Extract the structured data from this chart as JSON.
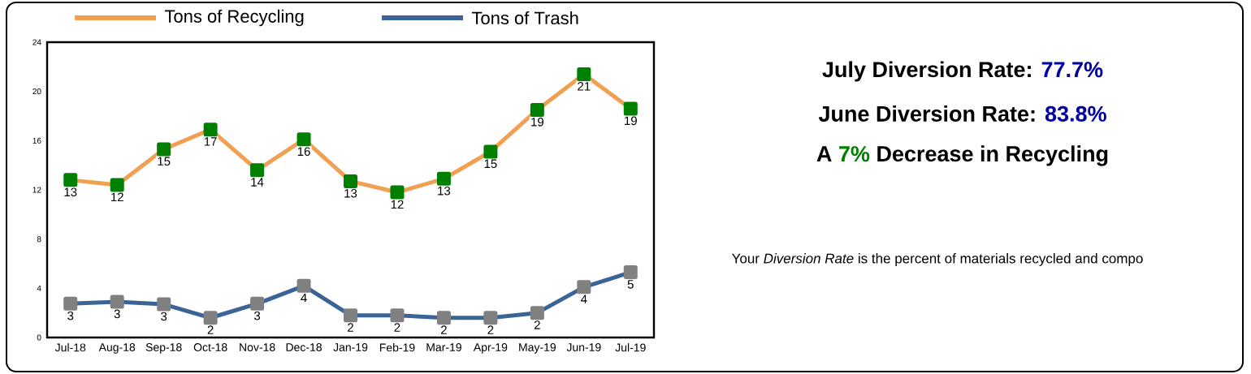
{
  "chart_data": {
    "type": "line",
    "categories": [
      "Jul-18",
      "Aug-18",
      "Sep-18",
      "Oct-18",
      "Nov-18",
      "Dec-18",
      "Jan-19",
      "Feb-19",
      "Mar-19",
      "Apr-19",
      "May-19",
      "Jun-19",
      "Jul-19"
    ],
    "series": [
      {
        "name": "Tons of Recycling",
        "color": "#f0a050",
        "values": [
          12.8,
          12.4,
          15.3,
          16.9,
          13.6,
          16.1,
          12.7,
          11.8,
          12.9,
          15.1,
          18.5,
          21.4,
          18.6
        ],
        "value_labels": [
          "13",
          "12",
          "15",
          "17",
          "14",
          "16",
          "13",
          "12",
          "13",
          "15",
          "19",
          "21",
          "19"
        ]
      },
      {
        "name": "Tons of Trash",
        "color": "#3a6496",
        "values": [
          2.75,
          2.9,
          2.7,
          1.6,
          2.75,
          4.2,
          1.8,
          1.8,
          1.6,
          1.6,
          2.0,
          4.1,
          5.3
        ],
        "value_labels": [
          "3",
          "3",
          "3",
          "2",
          "3",
          "4",
          "2",
          "2",
          "2",
          "2",
          "2",
          "4",
          "5"
        ]
      }
    ],
    "ylim": [
      0,
      24
    ],
    "yticks": [
      0,
      4,
      8,
      12,
      16,
      20,
      24
    ],
    "grid": false,
    "legend": "top",
    "marker": "square",
    "line_style": "solid",
    "annotations": [
      "July Diversion Rate:",
      "77.7%",
      "June Diversion Rate:",
      "83.8%",
      "A",
      "7%",
      "Decrease in Recycling",
      "Your *Diversion Rate* is the percent of materials recycled and compo"
    ]
  }
}
